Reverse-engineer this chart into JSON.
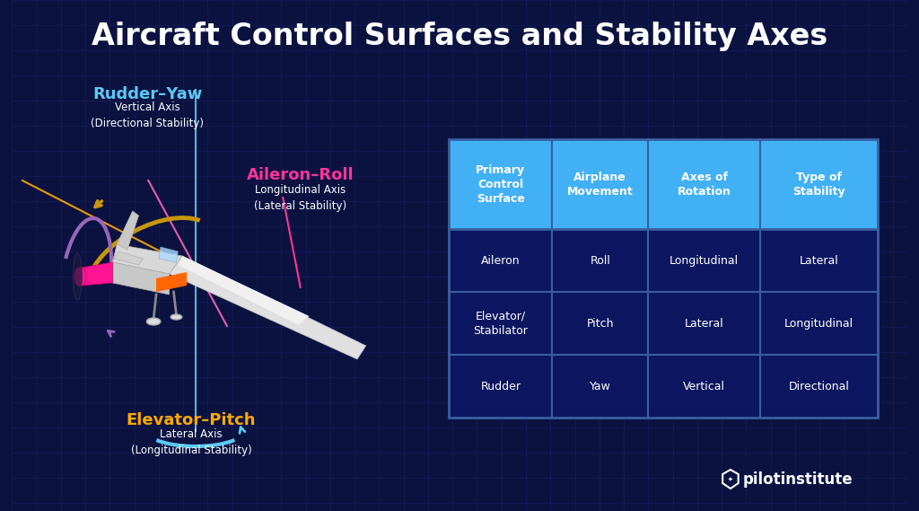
{
  "title": "Aircraft Control Surfaces and Stability Axes",
  "bg_color": "#0b1240",
  "grid_color": "#1a2570",
  "title_color": "#ffffff",
  "title_fontsize": 24,
  "label_rudder": "Rudder–Yaw",
  "label_rudder_color": "#5bc8f5",
  "label_rudder_sub": "Vertical Axis\n(Directional Stability)",
  "label_aileron": "Aileron–Roll",
  "label_aileron_color": "#ff3399",
  "label_aileron_sub": "Longitudinal Axis\n(Lateral Stability)",
  "label_elevator": "Elevator–Pitch",
  "label_elevator_color": "#ffaa00",
  "label_elevator_sub": "Lateral Axis\n(Longitudinal Stability)",
  "table_header_bg": "#42b0f5",
  "table_header_text": "#ffffff",
  "table_body_bg": "#0d1660",
  "table_border_color": "#3a5fa0",
  "table_text_color": "#ffffff",
  "table_headers": [
    "Primary\nControl\nSurface",
    "Airplane\nMovement",
    "Axes of\nRotation",
    "Type of\nStability"
  ],
  "table_rows": [
    [
      "Aileron",
      "Roll",
      "Longitudinal",
      "Lateral"
    ],
    [
      "Elevator/\nStabilator",
      "Pitch",
      "Lateral",
      "Longitudinal"
    ],
    [
      "Rudder",
      "Yaw",
      "Vertical",
      "Directional"
    ]
  ],
  "logo_text": "pilotinstitute",
  "logo_color": "#ffffff",
  "arc_roll_color": "#c8960a",
  "arc_yaw_color": "#5bc8f5",
  "arc_pitch_color": "#9966bb",
  "axis_yaw_color": "#5bc8f5",
  "axis_roll_color": "#ffaa00",
  "axis_pitch_color": "#ff66bb"
}
